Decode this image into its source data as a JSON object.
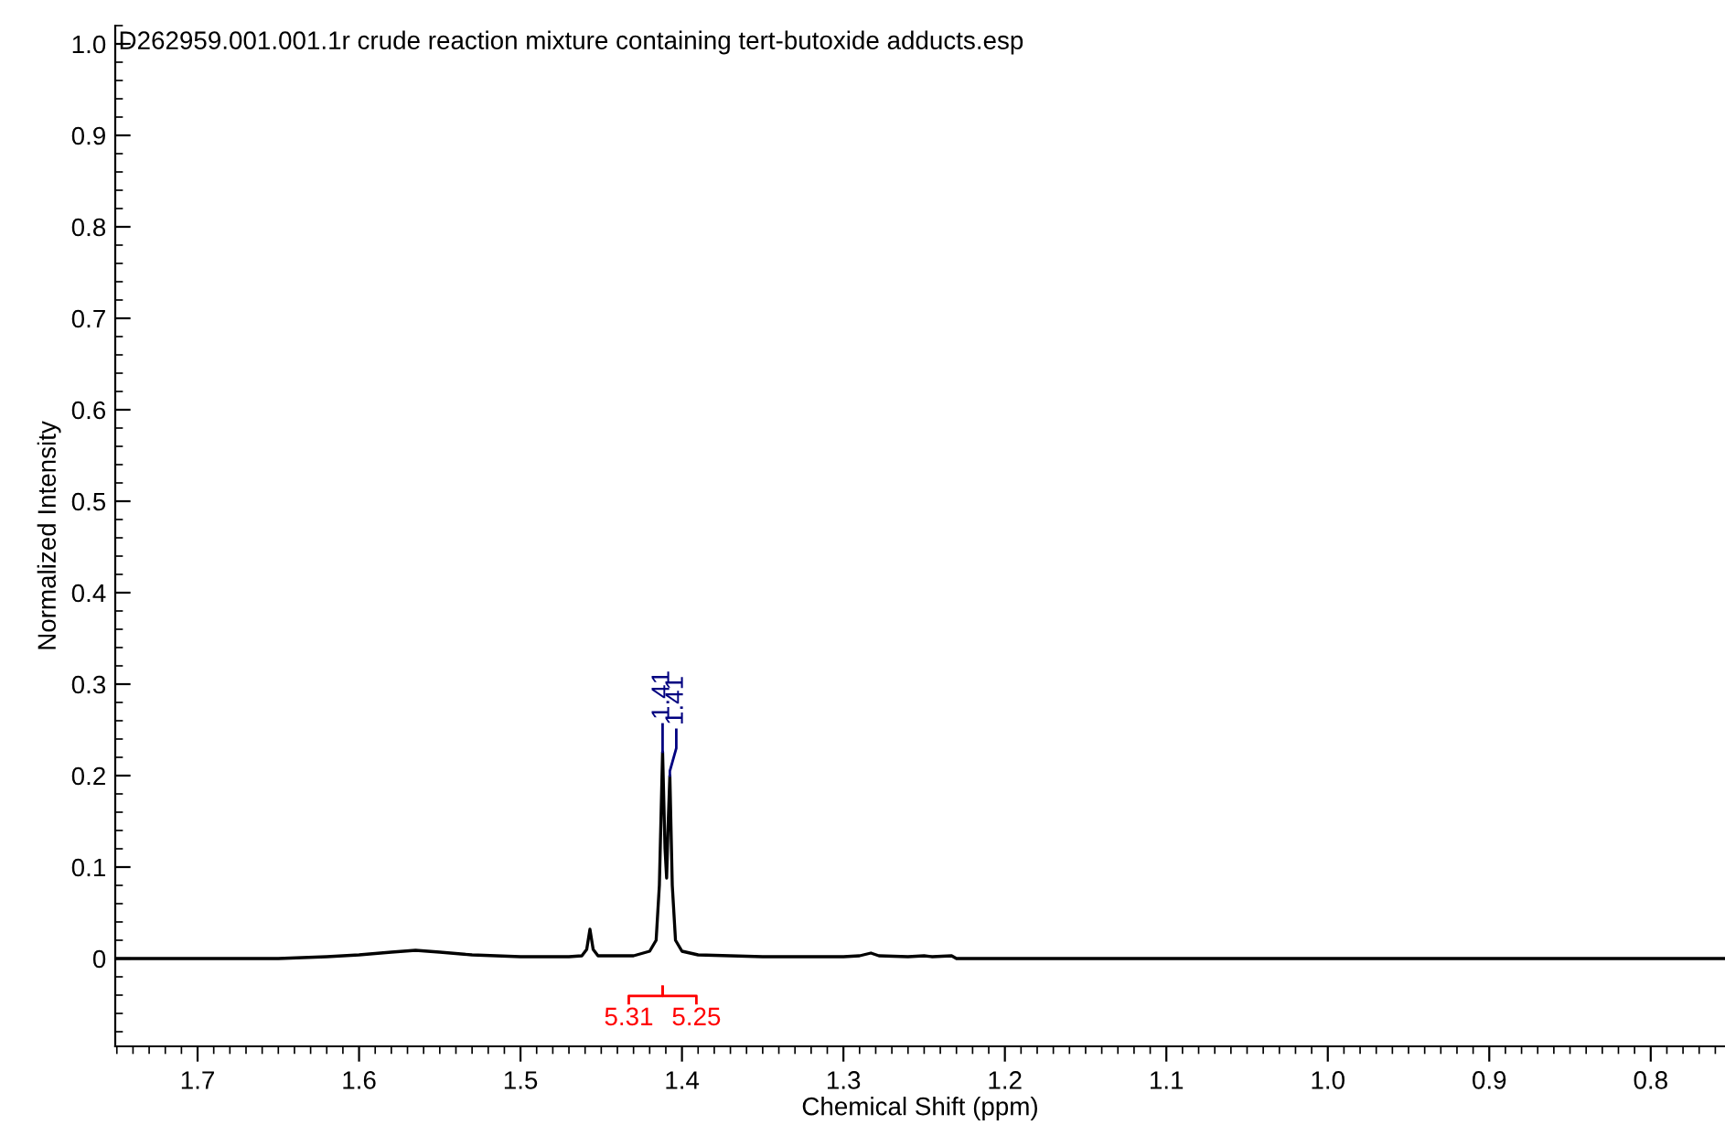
{
  "chart_data": {
    "type": "line",
    "title": "D262959.001.001.1r crude reaction mixture containing tert-butoxide adducts.esp",
    "xlabel": "Chemical Shift (ppm)",
    "ylabel": "Normalized Intensity",
    "x": [
      1.751,
      1.7,
      1.65,
      1.62,
      1.6,
      1.58,
      1.565,
      1.55,
      1.53,
      1.5,
      1.47,
      1.462,
      1.459,
      1.457,
      1.455,
      1.452,
      1.43,
      1.42,
      1.416,
      1.414,
      1.412,
      1.4105,
      1.4095,
      1.4085,
      1.4075,
      1.406,
      1.404,
      1.4,
      1.39,
      1.35,
      1.3,
      1.29,
      1.283,
      1.278,
      1.26,
      1.25,
      1.245,
      1.233,
      1.23,
      1.2,
      1.1,
      1.0,
      0.9,
      0.8,
      0.754
    ],
    "series": [
      {
        "color": "#000000",
        "values": [
          0,
          0,
          0,
          0.002,
          0.004,
          0.007,
          0.009,
          0.007,
          0.004,
          0.002,
          0.002,
          0.003,
          0.01,
          0.032,
          0.01,
          0.003,
          0.003,
          0.008,
          0.02,
          0.08,
          0.226,
          0.12,
          0.088,
          0.15,
          0.2,
          0.08,
          0.02,
          0.008,
          0.004,
          0.002,
          0.002,
          0.003,
          0.006,
          0.003,
          0.002,
          0.003,
          0.002,
          0.003,
          0,
          0,
          0,
          0,
          0,
          0,
          0
        ]
      }
    ],
    "xlim": [
      1.751,
      0.754
    ],
    "xticks": [
      1.7,
      1.6,
      1.5,
      1.4,
      1.3,
      1.2,
      1.1,
      {
        "value": 1,
        "label": "1.0"
      },
      0.9,
      0.8
    ],
    "ylim": [
      -0.096,
      1.02
    ],
    "yticks": [
      0,
      0.1,
      0.2,
      0.3,
      0.4,
      0.5,
      0.6,
      0.7,
      0.8,
      0.9,
      {
        "value": 1,
        "label": "1.0"
      }
    ],
    "annotations": [
      {
        "text": "1.41",
        "x": 1.412,
        "y": 0.226
      },
      {
        "text": "1.41",
        "x": 1.4075,
        "y": 0.2
      },
      "5.31",
      "5.25"
    ],
    "grid": false,
    "legend": false
  }
}
